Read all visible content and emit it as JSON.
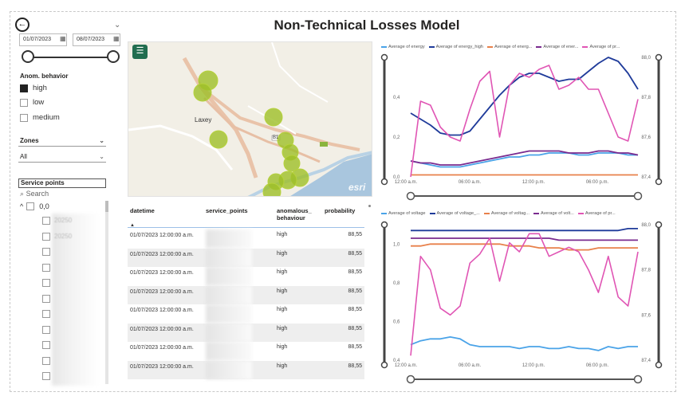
{
  "title": "Non-Technical Losses Model",
  "date_filter": {
    "start": "01/07/2023",
    "end": "08/07/2023"
  },
  "anom_behavior": {
    "title": "Anom. behavior",
    "options": [
      {
        "label": "high",
        "checked": true
      },
      {
        "label": "low",
        "checked": false
      },
      {
        "label": "medium",
        "checked": false
      }
    ]
  },
  "zones": {
    "title": "Zones",
    "value": "All"
  },
  "service_points": {
    "title": "Service points",
    "search_placeholder": "Search",
    "tree_root": "0,0",
    "item_prefix": "20250"
  },
  "map": {
    "place_label": "Laxey",
    "road_label": "B1",
    "attribution": "esri"
  },
  "table": {
    "headers": [
      "datetime",
      "service_points",
      "anomalous_ behaviour",
      "probability"
    ],
    "rows": [
      {
        "datetime": "01/07/2023 12:00:00 a.m.",
        "behaviour": "high",
        "probability": "88,55"
      },
      {
        "datetime": "01/07/2023 12:00:00 a.m.",
        "behaviour": "high",
        "probability": "88,55"
      },
      {
        "datetime": "01/07/2023 12:00:00 a.m.",
        "behaviour": "high",
        "probability": "88,55"
      },
      {
        "datetime": "01/07/2023 12:00:00 a.m.",
        "behaviour": "high",
        "probability": "88,55"
      },
      {
        "datetime": "01/07/2023 12:00:00 a.m.",
        "behaviour": "high",
        "probability": "88,55"
      },
      {
        "datetime": "01/07/2023 12:00:00 a.m.",
        "behaviour": "high",
        "probability": "88,55"
      },
      {
        "datetime": "01/07/2023 12:00:00 a.m.",
        "behaviour": "high",
        "probability": "88,55"
      },
      {
        "datetime": "01/07/2023 12:00:00 a.m.",
        "behaviour": "high",
        "probability": "88,55"
      }
    ]
  },
  "chart_data": [
    {
      "type": "line",
      "x_ticks": [
        "12:00 a.m.",
        "06:00 a.m.",
        "12:00 p.m.",
        "06:00 p.m."
      ],
      "y_left": {
        "ylim": [
          0,
          0.6
        ],
        "ticks": [
          "0,0",
          "0,2",
          "0,4"
        ]
      },
      "y_right": {
        "ylim": [
          87.4,
          88.0
        ],
        "ticks": [
          "87,4",
          "87,6",
          "87,8",
          "88,0"
        ]
      },
      "series": [
        {
          "name": "Average of energy",
          "color": "#4aa3e8",
          "axis": "left",
          "values": [
            0.08,
            0.07,
            0.06,
            0.05,
            0.05,
            0.05,
            0.06,
            0.07,
            0.08,
            0.09,
            0.1,
            0.1,
            0.11,
            0.11,
            0.12,
            0.12,
            0.12,
            0.11,
            0.11,
            0.12,
            0.12,
            0.12,
            0.11,
            0.11
          ]
        },
        {
          "name": "Average of energy_high",
          "color": "#1f3b9a",
          "axis": "left",
          "values": [
            0.32,
            0.29,
            0.26,
            0.22,
            0.21,
            0.21,
            0.23,
            0.29,
            0.35,
            0.41,
            0.46,
            0.5,
            0.52,
            0.52,
            0.5,
            0.48,
            0.49,
            0.49,
            0.53,
            0.57,
            0.6,
            0.58,
            0.52,
            0.44
          ]
        },
        {
          "name": "Average of energ...",
          "color": "#e8804a",
          "axis": "left",
          "values": [
            0.01,
            0.01,
            0.01,
            0.01,
            0.01,
            0.01,
            0.01,
            0.01,
            0.01,
            0.01,
            0.01,
            0.01,
            0.01,
            0.01,
            0.01,
            0.01,
            0.01,
            0.01,
            0.01,
            0.01,
            0.01,
            0.01,
            0.01,
            0.01
          ]
        },
        {
          "name": "Average of ener...",
          "color": "#7a2b8f",
          "axis": "left",
          "values": [
            0.08,
            0.07,
            0.07,
            0.06,
            0.06,
            0.06,
            0.07,
            0.08,
            0.09,
            0.1,
            0.11,
            0.12,
            0.13,
            0.13,
            0.13,
            0.13,
            0.12,
            0.12,
            0.12,
            0.13,
            0.13,
            0.12,
            0.12,
            0.11
          ]
        },
        {
          "name": "Average of pr...",
          "color": "#e055b4",
          "axis": "right",
          "values": [
            87.4,
            87.78,
            87.76,
            87.65,
            87.6,
            87.58,
            87.74,
            87.88,
            87.93,
            87.6,
            87.86,
            87.92,
            87.9,
            87.94,
            87.96,
            87.84,
            87.86,
            87.9,
            87.84,
            87.84,
            87.72,
            87.6,
            87.58,
            87.79
          ]
        }
      ]
    },
    {
      "type": "line",
      "x_ticks": [
        "12:00 a.m.",
        "06:00 a.m.",
        "12:00 p.m.",
        "06:00 p.m."
      ],
      "y_left": {
        "ylim": [
          0.4,
          1.1
        ],
        "ticks": [
          "0,4",
          "0,6",
          "0,8",
          "1,0"
        ]
      },
      "y_right": {
        "ylim": [
          87.4,
          88.0
        ],
        "ticks": [
          "87,4",
          "87,6",
          "87,8",
          "88,0"
        ]
      },
      "series": [
        {
          "name": "Average of voltage",
          "color": "#4aa3e8",
          "axis": "left",
          "values": [
            0.48,
            0.5,
            0.51,
            0.51,
            0.52,
            0.51,
            0.48,
            0.47,
            0.47,
            0.47,
            0.47,
            0.46,
            0.47,
            0.47,
            0.46,
            0.46,
            0.47,
            0.46,
            0.46,
            0.45,
            0.47,
            0.46,
            0.47,
            0.47
          ]
        },
        {
          "name": "Average of voltage_...",
          "color": "#1f3b9a",
          "axis": "left",
          "values": [
            1.07,
            1.07,
            1.07,
            1.07,
            1.07,
            1.07,
            1.07,
            1.07,
            1.07,
            1.07,
            1.07,
            1.07,
            1.07,
            1.07,
            1.07,
            1.07,
            1.07,
            1.07,
            1.07,
            1.07,
            1.07,
            1.07,
            1.08,
            1.08
          ]
        },
        {
          "name": "Average of voltag...",
          "color": "#e8804a",
          "axis": "left",
          "values": [
            0.99,
            0.99,
            1.0,
            1.0,
            1.0,
            1.0,
            1.0,
            1.0,
            1.0,
            1.0,
            0.99,
            0.99,
            0.99,
            0.98,
            0.98,
            0.98,
            0.97,
            0.97,
            0.97,
            0.98,
            0.98,
            0.98,
            0.98,
            0.98
          ]
        },
        {
          "name": "Average of volt...",
          "color": "#7a2b8f",
          "axis": "left",
          "values": [
            1.03,
            1.03,
            1.03,
            1.03,
            1.03,
            1.03,
            1.03,
            1.03,
            1.03,
            1.03,
            1.03,
            1.03,
            1.03,
            1.03,
            1.03,
            1.02,
            1.02,
            1.02,
            1.02,
            1.02,
            1.02,
            1.02,
            1.02,
            1.02
          ]
        },
        {
          "name": "Average of pr...",
          "color": "#e055b4",
          "axis": "right",
          "values": [
            87.42,
            87.86,
            87.8,
            87.63,
            87.6,
            87.64,
            87.83,
            87.87,
            87.94,
            87.75,
            87.92,
            87.88,
            87.96,
            87.96,
            87.86,
            87.88,
            87.9,
            87.88,
            87.8,
            87.7,
            87.86,
            87.68,
            87.64,
            87.88
          ]
        }
      ]
    }
  ]
}
